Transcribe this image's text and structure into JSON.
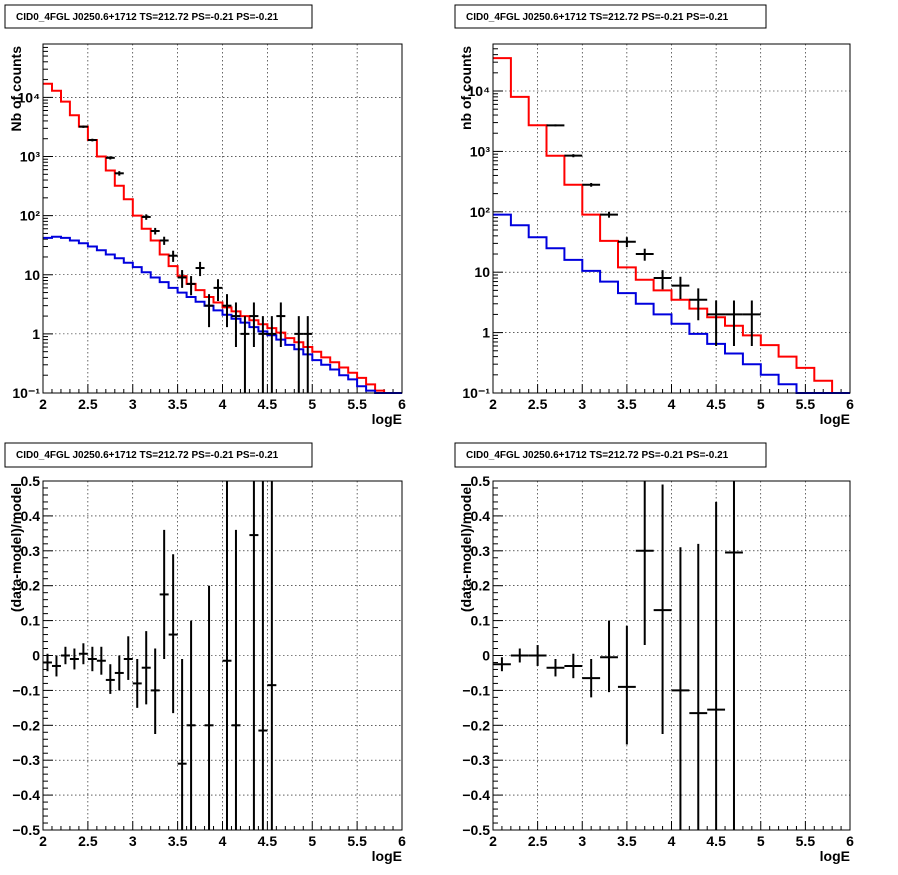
{
  "chart_data": [
    {
      "type": "line",
      "title": "CID0_4FGL J0250.6+1712 TS=212.72 PS=-0.21 PS=-0.21",
      "xlabel": "logE",
      "ylabel": "Nb of counts",
      "xlim": [
        2,
        6
      ],
      "ylim": [
        0.1,
        80000
      ],
      "yscale": "log",
      "grid": true,
      "xticks": [
        2,
        2.5,
        3,
        3.5,
        4,
        4.5,
        5,
        5.5,
        6
      ],
      "xtick_labels": [
        "2",
        "2.5",
        "3",
        "3.5",
        "4",
        "4.5",
        "5",
        "5.5",
        "6"
      ],
      "yticks": [
        0.1,
        1,
        10,
        100,
        1000,
        10000
      ],
      "ytick_labels": [
        "10⁻¹",
        "1",
        "10",
        "10²",
        "10³",
        "10⁴"
      ],
      "bin_edges": [
        2,
        2.1,
        2.2,
        2.3,
        2.4,
        2.5,
        2.6,
        2.7,
        2.8,
        2.9,
        3,
        3.1,
        3.2,
        3.3,
        3.4,
        3.5,
        3.6,
        3.7,
        3.8,
        3.9,
        4,
        4.1,
        4.2,
        4.3,
        4.4,
        4.5,
        4.6,
        4.7,
        4.8,
        4.9,
        5,
        5.1,
        5.2,
        5.3,
        5.4,
        5.5,
        5.6,
        5.7,
        5.8,
        5.9,
        6
      ],
      "series": [
        {
          "color": "#ff0000",
          "values": [
            17000,
            13000,
            8500,
            5000,
            3200,
            1900,
            1000,
            580,
            320,
            190,
            100,
            60,
            38,
            22,
            14,
            9.5,
            7,
            5.5,
            4.2,
            3.4,
            2.8,
            2.4,
            2.0,
            1.7,
            1.45,
            1.25,
            1.05,
            0.85,
            0.72,
            0.6,
            0.5,
            0.4,
            0.33,
            0.27,
            0.22,
            0.18,
            0.14,
            0.11,
            0.1,
            0.1
          ]
        },
        {
          "color": "#0000dd",
          "values": [
            42,
            44,
            42,
            38,
            34,
            30,
            26,
            22,
            19,
            16,
            13.5,
            11,
            9,
            7.5,
            6,
            5,
            4.2,
            3.5,
            3.0,
            2.5,
            2.1,
            1.8,
            1.55,
            1.3,
            1.1,
            0.95,
            0.8,
            0.65,
            0.55,
            0.45,
            0.36,
            0.3,
            0.25,
            0.2,
            0.17,
            0.13,
            0.11,
            0.1,
            0.1,
            0.1
          ]
        }
      ],
      "points": [
        {
          "x": 2.45,
          "y": 3200,
          "xerr": 0.05,
          "ylo": 3050,
          "yhi": 3350
        },
        {
          "x": 2.55,
          "y": 1900,
          "xerr": 0.05,
          "ylo": 1800,
          "yhi": 2000
        },
        {
          "x": 2.75,
          "y": 950,
          "xerr": 0.05,
          "ylo": 890,
          "yhi": 1010
        },
        {
          "x": 2.85,
          "y": 520,
          "xerr": 0.05,
          "ylo": 475,
          "yhi": 565
        },
        {
          "x": 3.15,
          "y": 95,
          "xerr": 0.05,
          "ylo": 85,
          "yhi": 105
        },
        {
          "x": 3.25,
          "y": 55,
          "xerr": 0.05,
          "ylo": 48,
          "yhi": 62
        },
        {
          "x": 3.35,
          "y": 38,
          "xerr": 0.05,
          "ylo": 32,
          "yhi": 44
        },
        {
          "x": 3.45,
          "y": 21,
          "xerr": 0.05,
          "ylo": 16.5,
          "yhi": 25.5
        },
        {
          "x": 3.55,
          "y": 9,
          "xerr": 0.05,
          "ylo": 6,
          "yhi": 12
        },
        {
          "x": 3.65,
          "y": 7,
          "xerr": 0.05,
          "ylo": 4.5,
          "yhi": 9.5
        },
        {
          "x": 3.75,
          "y": 13,
          "xerr": 0.05,
          "ylo": 9.5,
          "yhi": 16.5
        },
        {
          "x": 3.85,
          "y": 3,
          "xerr": 0.05,
          "ylo": 1.3,
          "yhi": 4.7
        },
        {
          "x": 3.95,
          "y": 6,
          "xerr": 0.05,
          "ylo": 3.6,
          "yhi": 8.4
        },
        {
          "x": 4.05,
          "y": 3,
          "xerr": 0.05,
          "ylo": 1.3,
          "yhi": 4.7
        },
        {
          "x": 4.15,
          "y": 2,
          "xerr": 0.05,
          "ylo": 0.6,
          "yhi": 3.4
        },
        {
          "x": 4.25,
          "y": 1,
          "xerr": 0.05,
          "ylo": 0.1,
          "yhi": 2.0
        },
        {
          "x": 4.35,
          "y": 2,
          "xerr": 0.05,
          "ylo": 0.6,
          "yhi": 3.4
        },
        {
          "x": 4.45,
          "y": 1,
          "xerr": 0.05,
          "ylo": 0.1,
          "yhi": 2.0
        },
        {
          "x": 4.55,
          "y": 1,
          "xerr": 0.05,
          "ylo": 0.1,
          "yhi": 2.0
        },
        {
          "x": 4.65,
          "y": 2,
          "xerr": 0.05,
          "ylo": 0.6,
          "yhi": 3.4
        },
        {
          "x": 4.85,
          "y": 1,
          "xerr": 0.05,
          "ylo": 0.1,
          "yhi": 2.0
        },
        {
          "x": 4.95,
          "y": 1,
          "xerr": 0.05,
          "ylo": 0.1,
          "yhi": 2.0
        }
      ]
    },
    {
      "type": "line",
      "title": "CID0_4FGL J0250.6+1712 TS=212.72 PS=-0.21 PS=-0.21",
      "xlabel": "logE",
      "ylabel": "nb of counts",
      "xlim": [
        2,
        6
      ],
      "ylim": [
        0.1,
        60000
      ],
      "yscale": "log",
      "grid": true,
      "xticks": [
        2,
        2.5,
        3,
        3.5,
        4,
        4.5,
        5,
        5.5,
        6
      ],
      "xtick_labels": [
        "2",
        "2.5",
        "3",
        "3.5",
        "4",
        "4.5",
        "5",
        "5.5",
        "6"
      ],
      "yticks": [
        0.1,
        1,
        10,
        100,
        1000,
        10000
      ],
      "ytick_labels": [
        "10⁻¹",
        "1",
        "10",
        "10²",
        "10³",
        "10⁴"
      ],
      "bin_edges": [
        2,
        2.2,
        2.4,
        2.6,
        2.8,
        3,
        3.2,
        3.4,
        3.6,
        3.8,
        4,
        4.2,
        4.4,
        4.6,
        4.8,
        5,
        5.2,
        5.4,
        5.6,
        5.8,
        6
      ],
      "series": [
        {
          "color": "#ff0000",
          "values": [
            35000,
            8000,
            2700,
            850,
            280,
            90,
            33,
            12,
            7.5,
            5,
            3.5,
            2.5,
            1.8,
            1.3,
            0.9,
            0.62,
            0.4,
            0.26,
            0.16,
            0.1
          ]
        },
        {
          "color": "#0000dd",
          "values": [
            90,
            60,
            38,
            25,
            16,
            10.5,
            7,
            4.5,
            3.0,
            2.0,
            1.4,
            0.95,
            0.65,
            0.45,
            0.3,
            0.2,
            0.14,
            0.1,
            0.1,
            0.1
          ]
        }
      ],
      "points": [
        {
          "x": 2.7,
          "y": 2700,
          "xerr": 0.1,
          "ylo": 2600,
          "yhi": 2800
        },
        {
          "x": 2.9,
          "y": 850,
          "xerr": 0.1,
          "ylo": 800,
          "yhi": 900
        },
        {
          "x": 3.1,
          "y": 280,
          "xerr": 0.1,
          "ylo": 260,
          "yhi": 300
        },
        {
          "x": 3.3,
          "y": 90,
          "xerr": 0.1,
          "ylo": 80,
          "yhi": 100
        },
        {
          "x": 3.5,
          "y": 32,
          "xerr": 0.1,
          "ylo": 26,
          "yhi": 38
        },
        {
          "x": 3.7,
          "y": 20,
          "xerr": 0.1,
          "ylo": 15.5,
          "yhi": 24.5
        },
        {
          "x": 3.9,
          "y": 8,
          "xerr": 0.1,
          "ylo": 5.2,
          "yhi": 10.8
        },
        {
          "x": 4.1,
          "y": 6,
          "xerr": 0.1,
          "ylo": 3.6,
          "yhi": 8.4
        },
        {
          "x": 4.3,
          "y": 3.5,
          "xerr": 0.1,
          "ylo": 1.6,
          "yhi": 5.4
        },
        {
          "x": 4.5,
          "y": 2,
          "xerr": 0.1,
          "ylo": 0.6,
          "yhi": 3.4
        },
        {
          "x": 4.7,
          "y": 2,
          "xerr": 0.1,
          "ylo": 0.6,
          "yhi": 3.4
        },
        {
          "x": 4.9,
          "y": 2,
          "xerr": 0.1,
          "ylo": 0.6,
          "yhi": 3.4
        }
      ]
    },
    {
      "type": "scatter",
      "title": "CID0_4FGL J0250.6+1712 TS=212.72 PS=-0.21 PS=-0.21",
      "xlabel": "logE",
      "ylabel": "(data-model)/model",
      "xlim": [
        2,
        6
      ],
      "ylim": [
        -0.5,
        0.5
      ],
      "grid": true,
      "xticks": [
        2,
        2.5,
        3,
        3.5,
        4,
        4.5,
        5,
        5.5,
        6
      ],
      "xtick_labels": [
        "2",
        "2.5",
        "3",
        "3.5",
        "4",
        "4.5",
        "5",
        "5.5",
        "6"
      ],
      "yticks": [
        -0.5,
        -0.4,
        -0.3,
        -0.2,
        -0.1,
        0,
        0.1,
        0.2,
        0.3,
        0.4,
        0.5
      ],
      "ytick_labels": [
        "−0.5",
        "−0.4",
        "−0.3",
        "−0.2",
        "−0.1",
        "0",
        "0.1",
        "0.2",
        "0.3",
        "0.4",
        "0.5"
      ],
      "points": [
        {
          "x": 2.05,
          "y": -0.02,
          "xerr": 0.05,
          "ylo": -0.045,
          "yhi": 0.005
        },
        {
          "x": 2.15,
          "y": -0.03,
          "xerr": 0.05,
          "ylo": -0.06,
          "yhi": 0.0
        },
        {
          "x": 2.25,
          "y": 0.0,
          "xerr": 0.05,
          "ylo": -0.025,
          "yhi": 0.025
        },
        {
          "x": 2.35,
          "y": -0.01,
          "xerr": 0.05,
          "ylo": -0.04,
          "yhi": 0.02
        },
        {
          "x": 2.45,
          "y": 0.005,
          "xerr": 0.05,
          "ylo": -0.025,
          "yhi": 0.035
        },
        {
          "x": 2.55,
          "y": -0.01,
          "xerr": 0.05,
          "ylo": -0.045,
          "yhi": 0.025
        },
        {
          "x": 2.65,
          "y": -0.015,
          "xerr": 0.05,
          "ylo": -0.055,
          "yhi": 0.025
        },
        {
          "x": 2.75,
          "y": -0.07,
          "xerr": 0.05,
          "ylo": -0.11,
          "yhi": -0.025
        },
        {
          "x": 2.85,
          "y": -0.05,
          "xerr": 0.05,
          "ylo": -0.1,
          "yhi": 0.0
        },
        {
          "x": 2.95,
          "y": -0.01,
          "xerr": 0.05,
          "ylo": -0.07,
          "yhi": 0.055
        },
        {
          "x": 3.05,
          "y": -0.08,
          "xerr": 0.05,
          "ylo": -0.15,
          "yhi": -0.01
        },
        {
          "x": 3.15,
          "y": -0.035,
          "xerr": 0.05,
          "ylo": -0.14,
          "yhi": 0.07
        },
        {
          "x": 3.25,
          "y": -0.1,
          "xerr": 0.05,
          "ylo": -0.225,
          "yhi": 0.02
        },
        {
          "x": 3.35,
          "y": 0.175,
          "xerr": 0.05,
          "ylo": -0.01,
          "yhi": 0.36
        },
        {
          "x": 3.45,
          "y": 0.06,
          "xerr": 0.05,
          "ylo": -0.165,
          "yhi": 0.29
        },
        {
          "x": 3.55,
          "y": -0.31,
          "xerr": 0.05,
          "ylo": -0.5,
          "yhi": -0.01
        },
        {
          "x": 3.65,
          "y": -0.2,
          "xerr": 0.05,
          "ylo": -0.5,
          "yhi": 0.1
        },
        {
          "x": 3.85,
          "y": -0.2,
          "xerr": 0.05,
          "ylo": -0.5,
          "yhi": 0.2
        },
        {
          "x": 4.05,
          "y": -0.015,
          "xerr": 0.05,
          "ylo": -0.5,
          "yhi": 0.5
        },
        {
          "x": 4.15,
          "y": -0.2,
          "xerr": 0.05,
          "ylo": -0.5,
          "yhi": 0.36
        },
        {
          "x": 4.35,
          "y": 0.345,
          "xerr": 0.05,
          "ylo": -0.5,
          "yhi": 0.5
        },
        {
          "x": 4.45,
          "y": -0.215,
          "xerr": 0.05,
          "ylo": -0.5,
          "yhi": 0.5
        },
        {
          "x": 4.55,
          "y": -0.085,
          "xerr": 0.05,
          "ylo": -0.5,
          "yhi": 0.5
        }
      ]
    },
    {
      "type": "scatter",
      "title": "CID0_4FGL J0250.6+1712 TS=212.72 PS=-0.21 PS=-0.21",
      "xlabel": "logE",
      "ylabel": "(data-model)/model",
      "xlim": [
        2,
        6
      ],
      "ylim": [
        -0.5,
        0.5
      ],
      "grid": true,
      "xticks": [
        2,
        2.5,
        3,
        3.5,
        4,
        4.5,
        5,
        5.5,
        6
      ],
      "xtick_labels": [
        "2",
        "2.5",
        "3",
        "3.5",
        "4",
        "4.5",
        "5",
        "5.5",
        "6"
      ],
      "yticks": [
        -0.5,
        -0.4,
        -0.3,
        -0.2,
        -0.1,
        0,
        0.1,
        0.2,
        0.3,
        0.4,
        0.5
      ],
      "ytick_labels": [
        "−0.5",
        "−0.4",
        "−0.3",
        "−0.2",
        "−0.1",
        "0",
        "0.1",
        "0.2",
        "0.3",
        "0.4",
        "0.5"
      ],
      "points": [
        {
          "x": 2.1,
          "y": -0.025,
          "xerr": 0.1,
          "ylo": -0.045,
          "yhi": -0.005
        },
        {
          "x": 2.3,
          "y": 0.0,
          "xerr": 0.1,
          "ylo": -0.02,
          "yhi": 0.02
        },
        {
          "x": 2.5,
          "y": 0.0,
          "xerr": 0.1,
          "ylo": -0.03,
          "yhi": 0.03
        },
        {
          "x": 2.7,
          "y": -0.035,
          "xerr": 0.1,
          "ylo": -0.06,
          "yhi": -0.01
        },
        {
          "x": 2.9,
          "y": -0.03,
          "xerr": 0.1,
          "ylo": -0.065,
          "yhi": 0.005
        },
        {
          "x": 3.1,
          "y": -0.065,
          "xerr": 0.1,
          "ylo": -0.12,
          "yhi": -0.01
        },
        {
          "x": 3.3,
          "y": -0.005,
          "xerr": 0.1,
          "ylo": -0.105,
          "yhi": 0.1
        },
        {
          "x": 3.5,
          "y": -0.09,
          "xerr": 0.1,
          "ylo": -0.255,
          "yhi": 0.085
        },
        {
          "x": 3.7,
          "y": 0.3,
          "xerr": 0.1,
          "ylo": 0.03,
          "yhi": 0.5
        },
        {
          "x": 3.9,
          "y": 0.13,
          "xerr": 0.1,
          "ylo": -0.225,
          "yhi": 0.49
        },
        {
          "x": 4.1,
          "y": -0.1,
          "xerr": 0.1,
          "ylo": -0.5,
          "yhi": 0.31
        },
        {
          "x": 4.3,
          "y": -0.165,
          "xerr": 0.1,
          "ylo": -0.5,
          "yhi": 0.32
        },
        {
          "x": 4.5,
          "y": -0.155,
          "xerr": 0.1,
          "ylo": -0.5,
          "yhi": 0.44
        },
        {
          "x": 4.7,
          "y": 0.295,
          "xerr": 0.1,
          "ylo": -0.5,
          "yhi": 0.5
        }
      ]
    }
  ]
}
